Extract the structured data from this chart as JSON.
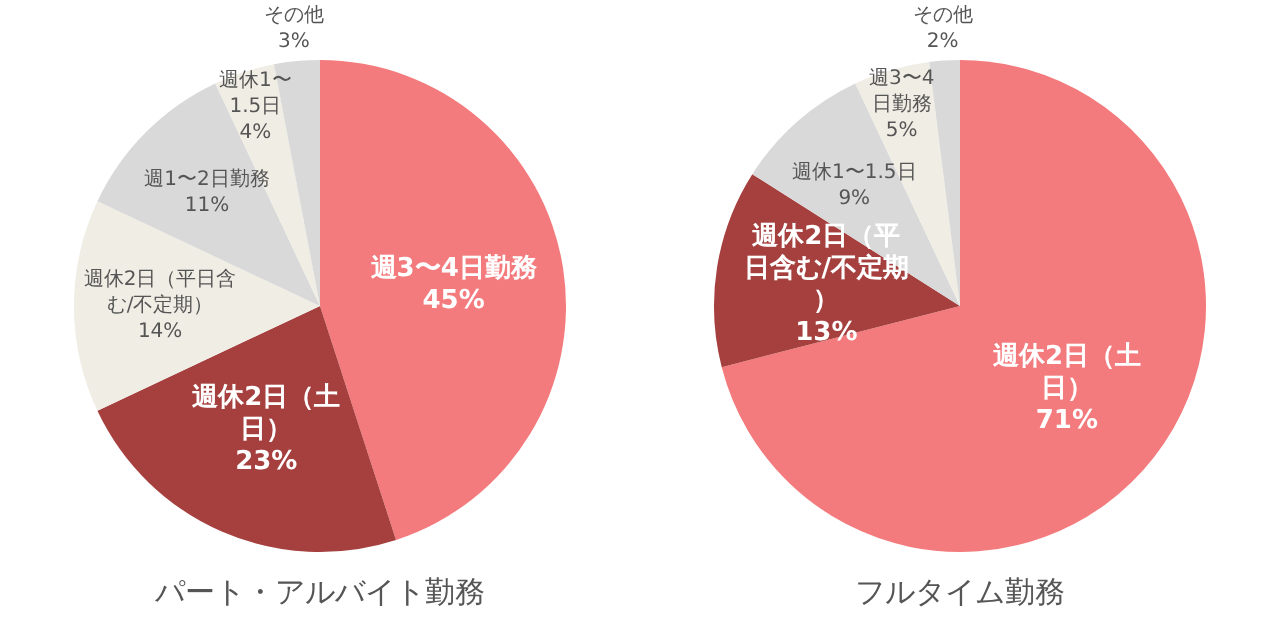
{
  "chart_data": [
    {
      "type": "pie",
      "title": "パート・アルバイト勤務",
      "categories": [
        "週3〜4日勤務",
        "週休2日（土日）",
        "週休2日（平日含む/不定期）",
        "週1〜2日勤務",
        "週休1〜1.5日",
        "その他"
      ],
      "values": [
        45,
        23,
        14,
        11,
        4,
        3
      ],
      "value_labels": [
        "45%",
        "23%",
        "14%",
        "11%",
        "4%",
        "3%"
      ],
      "colors": [
        "#f47b7d",
        "#a5403f",
        "#efede4",
        "#d9d9d9",
        "#efede4",
        "#d9d9d9"
      ]
    },
    {
      "type": "pie",
      "title": "フルタイム勤務",
      "categories": [
        "週休2日（土日）",
        "週休2日（平日含む/不定期）",
        "週休1〜1.5日",
        "週3〜4日勤務",
        "その他"
      ],
      "values": [
        71,
        13,
        9,
        5,
        2
      ],
      "value_labels": [
        "71%",
        "13%",
        "9%",
        "5%",
        "2%"
      ],
      "colors": [
        "#f47b7d",
        "#a5403f",
        "#d9d9d9",
        "#efede4",
        "#d9d9d9"
      ]
    }
  ]
}
